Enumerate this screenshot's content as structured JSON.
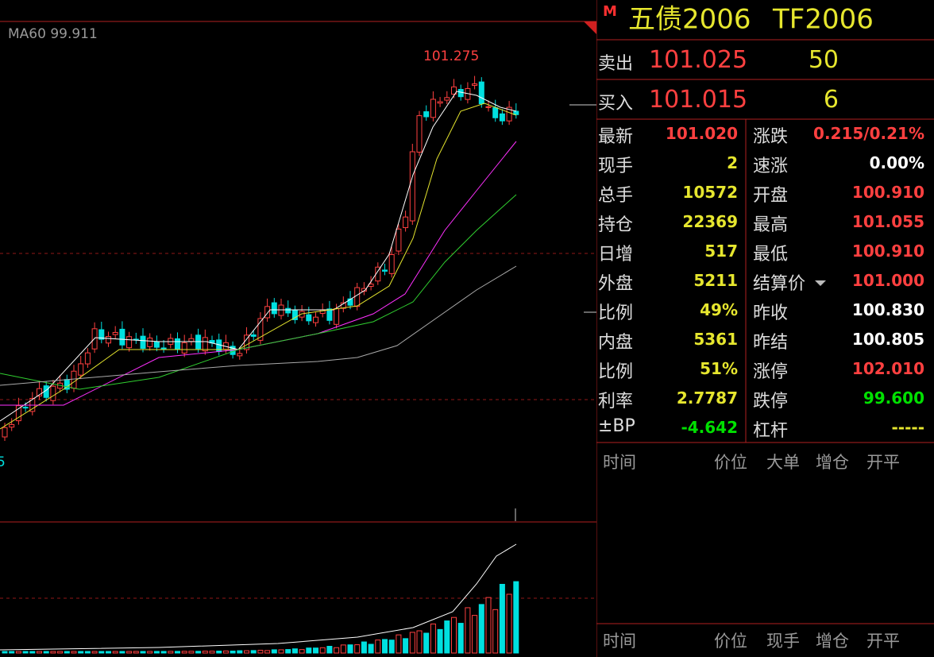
{
  "chart_panel": {
    "ma_label": "MA60 99.911",
    "high_label": "101.275",
    "low_label": "5"
  },
  "header": {
    "marker": "M",
    "name": "五债2006",
    "code": "TF2006"
  },
  "quotes": [
    {
      "label": "卖出",
      "price": "101.025",
      "qty": "50"
    },
    {
      "label": "买入",
      "price": "101.015",
      "qty": "6"
    }
  ],
  "stats": {
    "left": [
      {
        "label": "最新",
        "value": "101.020",
        "color": "#ff4040"
      },
      {
        "label": "现手",
        "value": "2",
        "color": "#e6e62e"
      },
      {
        "label": "总手",
        "value": "10572",
        "color": "#e6e62e"
      },
      {
        "label": "持仓",
        "value": "22369",
        "color": "#e6e62e"
      },
      {
        "label": "日增",
        "value": "517",
        "color": "#e6e62e"
      },
      {
        "label": "外盘",
        "value": "5211",
        "color": "#e6e62e"
      },
      {
        "label": "比例",
        "value": "49%",
        "color": "#e6e62e"
      },
      {
        "label": "内盘",
        "value": "5361",
        "color": "#e6e62e"
      },
      {
        "label": "比例",
        "value": "51%",
        "color": "#e6e62e"
      },
      {
        "label": "利率",
        "value": "2.7787",
        "color": "#e6e62e"
      },
      {
        "label": "±BP",
        "value": "-4.642",
        "color": "#00e000"
      }
    ],
    "right": [
      {
        "label": "涨跌",
        "value": "0.215/0.21%",
        "color": "#ff4040"
      },
      {
        "label": "速涨",
        "value": "0.00%",
        "color": "#ffffff"
      },
      {
        "label": "开盘",
        "value": "100.910",
        "color": "#ff4040"
      },
      {
        "label": "最高",
        "value": "101.055",
        "color": "#ff4040"
      },
      {
        "label": "最低",
        "value": "100.910",
        "color": "#ff4040"
      },
      {
        "label": "结算价",
        "value": "101.000",
        "color": "#ff4040"
      },
      {
        "label": "昨收",
        "value": "100.830",
        "color": "#ffffff"
      },
      {
        "label": "昨结",
        "value": "100.805",
        "color": "#ffffff"
      },
      {
        "label": "涨停",
        "value": "102.010",
        "color": "#ff4040"
      },
      {
        "label": "跌停",
        "value": "99.600",
        "color": "#00e000"
      },
      {
        "label": "杠杆",
        "value": "-----",
        "color": "#e6e62e"
      }
    ]
  },
  "tick_header": [
    "时间",
    "价位",
    "大单",
    "增仓",
    "开平"
  ],
  "trade_header": [
    "时间",
    "价位",
    "现手",
    "增仓",
    "开平"
  ]
}
